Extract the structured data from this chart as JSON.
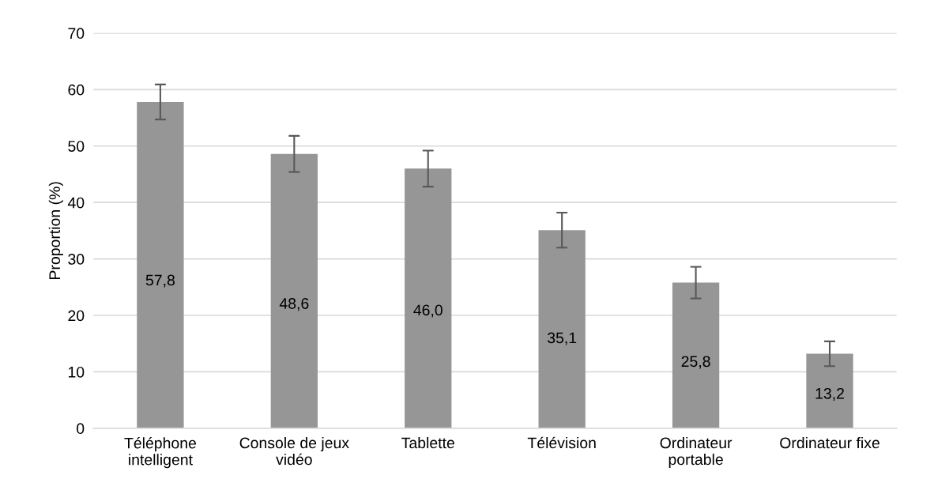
{
  "chart_data": {
    "type": "bar",
    "ylabel": "Proportion (%)",
    "categories": [
      "Téléphone\nintelligent",
      "Console de jeux\nvidéo",
      "Tablette",
      "Télévision",
      "Ordinateur\nportable",
      "Ordinateur fixe"
    ],
    "values": [
      57.8,
      48.6,
      46.0,
      35.1,
      25.8,
      13.2
    ],
    "errors": [
      3.1,
      3.2,
      3.2,
      3.1,
      2.8,
      2.2
    ],
    "value_labels": [
      "57,8",
      "48,6",
      "46,0",
      "35,1",
      "25,8",
      "13,2"
    ],
    "color": "#969696",
    "ylim": [
      0,
      70
    ],
    "yticks": [
      0,
      10,
      20,
      30,
      40,
      50,
      60,
      70
    ],
    "grid": "y"
  }
}
